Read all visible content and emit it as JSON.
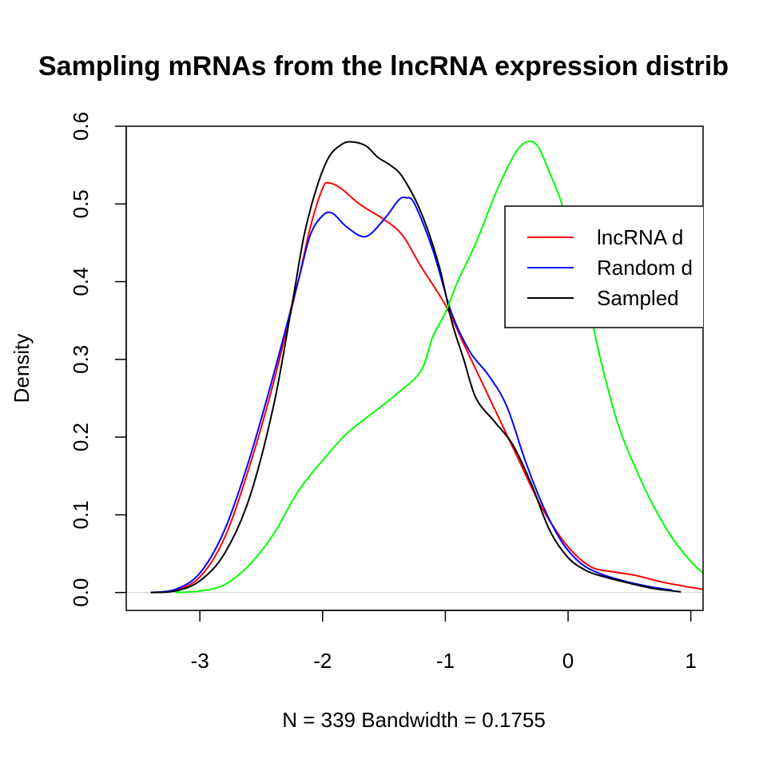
{
  "chart_data": {
    "type": "line",
    "title": "Sampling mRNAs from the lncRNA expression distrib",
    "xlabel": "N = 339   Bandwidth = 0.1755",
    "ylabel": "Density",
    "xlim": [
      -3.6,
      1.1
    ],
    "ylim": [
      -0.023,
      0.6
    ],
    "x_ticks": [
      -3,
      -2,
      -1,
      0,
      1
    ],
    "x_tick_labels": [
      "-3",
      "-2",
      "-1",
      "0",
      "1"
    ],
    "y_ticks": [
      0.0,
      0.1,
      0.2,
      0.3,
      0.4,
      0.5,
      0.6
    ],
    "y_tick_labels": [
      "0.0",
      "0.1",
      "0.2",
      "0.3",
      "0.4",
      "0.5",
      "0.6"
    ],
    "grid": false,
    "legend": {
      "position": "top-right",
      "entries": [
        {
          "label": "lncRNA d",
          "color": "#ff0000"
        },
        {
          "label": "Random d",
          "color": "#0000ff"
        },
        {
          "label": "Sampled",
          "color": "#000000"
        }
      ]
    },
    "series": [
      {
        "color": "#ff0000",
        "points": [
          [
            -3.4,
            0.0
          ],
          [
            -3.2,
            0.003
          ],
          [
            -3.0,
            0.02
          ],
          [
            -2.8,
            0.07
          ],
          [
            -2.6,
            0.16
          ],
          [
            -2.4,
            0.27
          ],
          [
            -2.2,
            0.4
          ],
          [
            -2.1,
            0.47
          ],
          [
            -2.0,
            0.52
          ],
          [
            -1.95,
            0.527
          ],
          [
            -1.85,
            0.52
          ],
          [
            -1.7,
            0.5
          ],
          [
            -1.5,
            0.48
          ],
          [
            -1.35,
            0.46
          ],
          [
            -1.2,
            0.42
          ],
          [
            -1.0,
            0.37
          ],
          [
            -0.85,
            0.32
          ],
          [
            -0.7,
            0.27
          ],
          [
            -0.55,
            0.22
          ],
          [
            -0.4,
            0.17
          ],
          [
            -0.25,
            0.12
          ],
          [
            -0.1,
            0.08
          ],
          [
            0.05,
            0.05
          ],
          [
            0.2,
            0.032
          ],
          [
            0.35,
            0.027
          ],
          [
            0.55,
            0.022
          ],
          [
            0.75,
            0.014
          ],
          [
            0.95,
            0.008
          ],
          [
            1.1,
            0.004
          ]
        ]
      },
      {
        "color": "#0000ff",
        "points": [
          [
            -3.4,
            0.0
          ],
          [
            -3.2,
            0.004
          ],
          [
            -3.0,
            0.025
          ],
          [
            -2.8,
            0.08
          ],
          [
            -2.6,
            0.17
          ],
          [
            -2.4,
            0.28
          ],
          [
            -2.2,
            0.4
          ],
          [
            -2.1,
            0.46
          ],
          [
            -2.0,
            0.485
          ],
          [
            -1.92,
            0.488
          ],
          [
            -1.8,
            0.47
          ],
          [
            -1.65,
            0.458
          ],
          [
            -1.5,
            0.48
          ],
          [
            -1.38,
            0.505
          ],
          [
            -1.32,
            0.508
          ],
          [
            -1.25,
            0.5
          ],
          [
            -1.1,
            0.44
          ],
          [
            -0.95,
            0.36
          ],
          [
            -0.8,
            0.31
          ],
          [
            -0.65,
            0.28
          ],
          [
            -0.5,
            0.24
          ],
          [
            -0.35,
            0.17
          ],
          [
            -0.2,
            0.11
          ],
          [
            -0.05,
            0.065
          ],
          [
            0.1,
            0.038
          ],
          [
            0.25,
            0.025
          ],
          [
            0.45,
            0.015
          ],
          [
            0.65,
            0.008
          ],
          [
            0.85,
            0.003
          ]
        ]
      },
      {
        "color": "#000000",
        "points": [
          [
            -3.4,
            0.0
          ],
          [
            -3.2,
            0.002
          ],
          [
            -3.0,
            0.015
          ],
          [
            -2.8,
            0.05
          ],
          [
            -2.6,
            0.12
          ],
          [
            -2.4,
            0.24
          ],
          [
            -2.25,
            0.37
          ],
          [
            -2.15,
            0.46
          ],
          [
            -2.05,
            0.52
          ],
          [
            -1.95,
            0.56
          ],
          [
            -1.85,
            0.576
          ],
          [
            -1.77,
            0.58
          ],
          [
            -1.65,
            0.575
          ],
          [
            -1.55,
            0.56
          ],
          [
            -1.45,
            0.55
          ],
          [
            -1.35,
            0.535
          ],
          [
            -1.2,
            0.49
          ],
          [
            -1.05,
            0.42
          ],
          [
            -0.95,
            0.35
          ],
          [
            -0.85,
            0.3
          ],
          [
            -0.75,
            0.25
          ],
          [
            -0.6,
            0.22
          ],
          [
            -0.45,
            0.19
          ],
          [
            -0.3,
            0.14
          ],
          [
            -0.15,
            0.08
          ],
          [
            0.0,
            0.045
          ],
          [
            0.15,
            0.028
          ],
          [
            0.3,
            0.02
          ],
          [
            0.5,
            0.012
          ],
          [
            0.7,
            0.005
          ],
          [
            0.92,
            0.001
          ]
        ]
      },
      {
        "color": "#00ff00",
        "points": [
          [
            -3.2,
            0.0
          ],
          [
            -3.0,
            0.002
          ],
          [
            -2.8,
            0.01
          ],
          [
            -2.6,
            0.035
          ],
          [
            -2.4,
            0.075
          ],
          [
            -2.2,
            0.13
          ],
          [
            -2.0,
            0.17
          ],
          [
            -1.8,
            0.205
          ],
          [
            -1.6,
            0.23
          ],
          [
            -1.4,
            0.255
          ],
          [
            -1.2,
            0.285
          ],
          [
            -1.1,
            0.33
          ],
          [
            -1.0,
            0.36
          ],
          [
            -0.9,
            0.4
          ],
          [
            -0.75,
            0.45
          ],
          [
            -0.6,
            0.51
          ],
          [
            -0.45,
            0.56
          ],
          [
            -0.35,
            0.579
          ],
          [
            -0.25,
            0.575
          ],
          [
            -0.15,
            0.54
          ],
          [
            -0.05,
            0.5
          ],
          [
            0.1,
            0.42
          ],
          [
            0.25,
            0.31
          ],
          [
            0.4,
            0.22
          ],
          [
            0.55,
            0.16
          ],
          [
            0.7,
            0.11
          ],
          [
            0.85,
            0.07
          ],
          [
            1.0,
            0.04
          ],
          [
            1.1,
            0.025
          ]
        ]
      }
    ]
  }
}
